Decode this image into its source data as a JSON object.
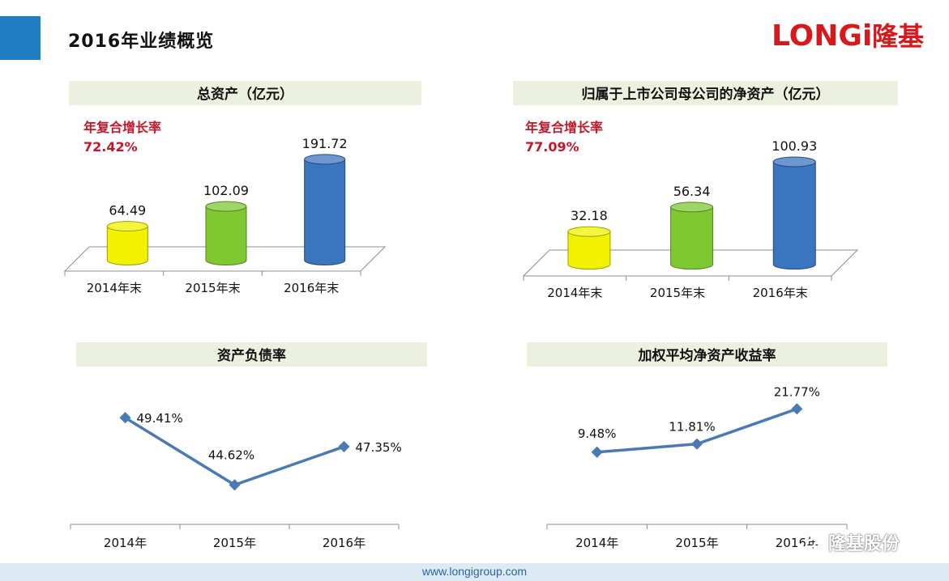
{
  "header": {
    "title": "2016年业绩概览",
    "logo_text": "LONGi",
    "logo_cn": "隆基"
  },
  "footer": {
    "url": "www.longigroup.com",
    "watermark": "隆基股份"
  },
  "colors": {
    "accent": "#1f7dc1",
    "logo_red": "#d7191c",
    "panel_title_bg": "#ebf1de",
    "cagr_red": "#c0182a",
    "bar_yellow": "#f2f200",
    "bar_green": "#7ec832",
    "bar_blue": "#3b74bf",
    "line": "#4a7ab5"
  },
  "chart_data": [
    {
      "type": "bar",
      "title": "总资产（亿元）",
      "categories": [
        "2014年末",
        "2015年末",
        "2016年末"
      ],
      "values": [
        64.49,
        102.09,
        191.72
      ],
      "value_labels": [
        "64.49",
        "102.09",
        "191.72"
      ],
      "ylim": [
        0,
        200
      ],
      "annotation": {
        "label": "年复合增长率",
        "value": "72.42%"
      },
      "grid": false
    },
    {
      "type": "bar",
      "title": "归属于上市公司母公司的净资产（亿元）",
      "categories": [
        "2014年末",
        "2015年末",
        "2016年末"
      ],
      "values": [
        32.18,
        56.34,
        100.93
      ],
      "value_labels": [
        "32.18",
        "56.34",
        "100.93"
      ],
      "ylim": [
        0,
        110
      ],
      "annotation": {
        "label": "年复合增长率",
        "value": "77.09%"
      },
      "grid": false
    },
    {
      "type": "line",
      "title": "资产负债率",
      "categories": [
        "2014年",
        "2015年",
        "2016年"
      ],
      "values": [
        49.41,
        44.62,
        47.35
      ],
      "value_labels": [
        "49.41%",
        "44.62%",
        "47.35%"
      ],
      "ylim": [
        44,
        50
      ],
      "grid": false
    },
    {
      "type": "line",
      "title": "加权平均净资产收益率",
      "categories": [
        "2014年",
        "2015年",
        "2016年"
      ],
      "values": [
        9.48,
        11.81,
        21.77
      ],
      "value_labels": [
        "9.48%",
        "11.81%",
        "21.77%"
      ],
      "ylim": [
        0,
        23
      ],
      "grid": false
    }
  ]
}
